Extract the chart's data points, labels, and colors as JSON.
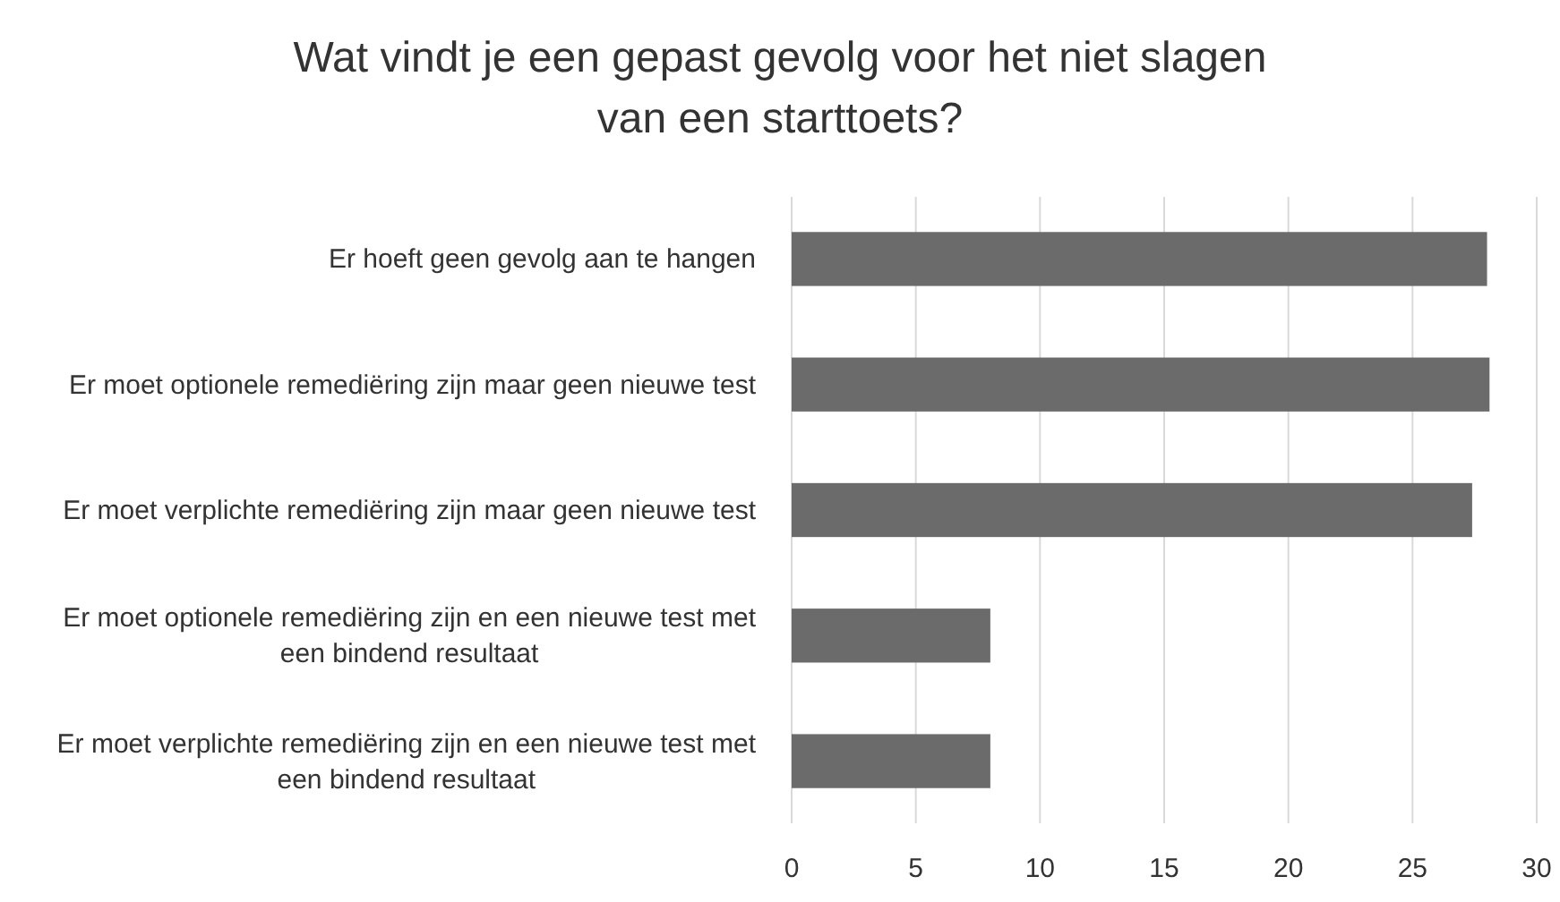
{
  "chart_data": {
    "type": "bar",
    "orientation": "horizontal",
    "title": "Wat vindt je een gepast gevolg voor het niet slagen van een starttoets?",
    "categories": [
      "Er hoeft geen gevolg aan te hangen",
      "Er moet optionele remediëring zijn maar geen nieuwe test",
      "Er moet verplichte remediëring zijn maar geen nieuwe test",
      "Er moet optionele remediëring zijn en een nieuwe test met een bindend resultaat",
      "Er moet verplichte remediëring zijn en een nieuwe test met een bindend resultaat"
    ],
    "values": [
      28,
      28.1,
      27.4,
      8,
      8
    ],
    "color": "#6b6b6b",
    "xlim": [
      0,
      30
    ],
    "xticks": [
      0,
      5,
      10,
      15,
      20,
      25,
      30
    ],
    "grid": "x"
  }
}
